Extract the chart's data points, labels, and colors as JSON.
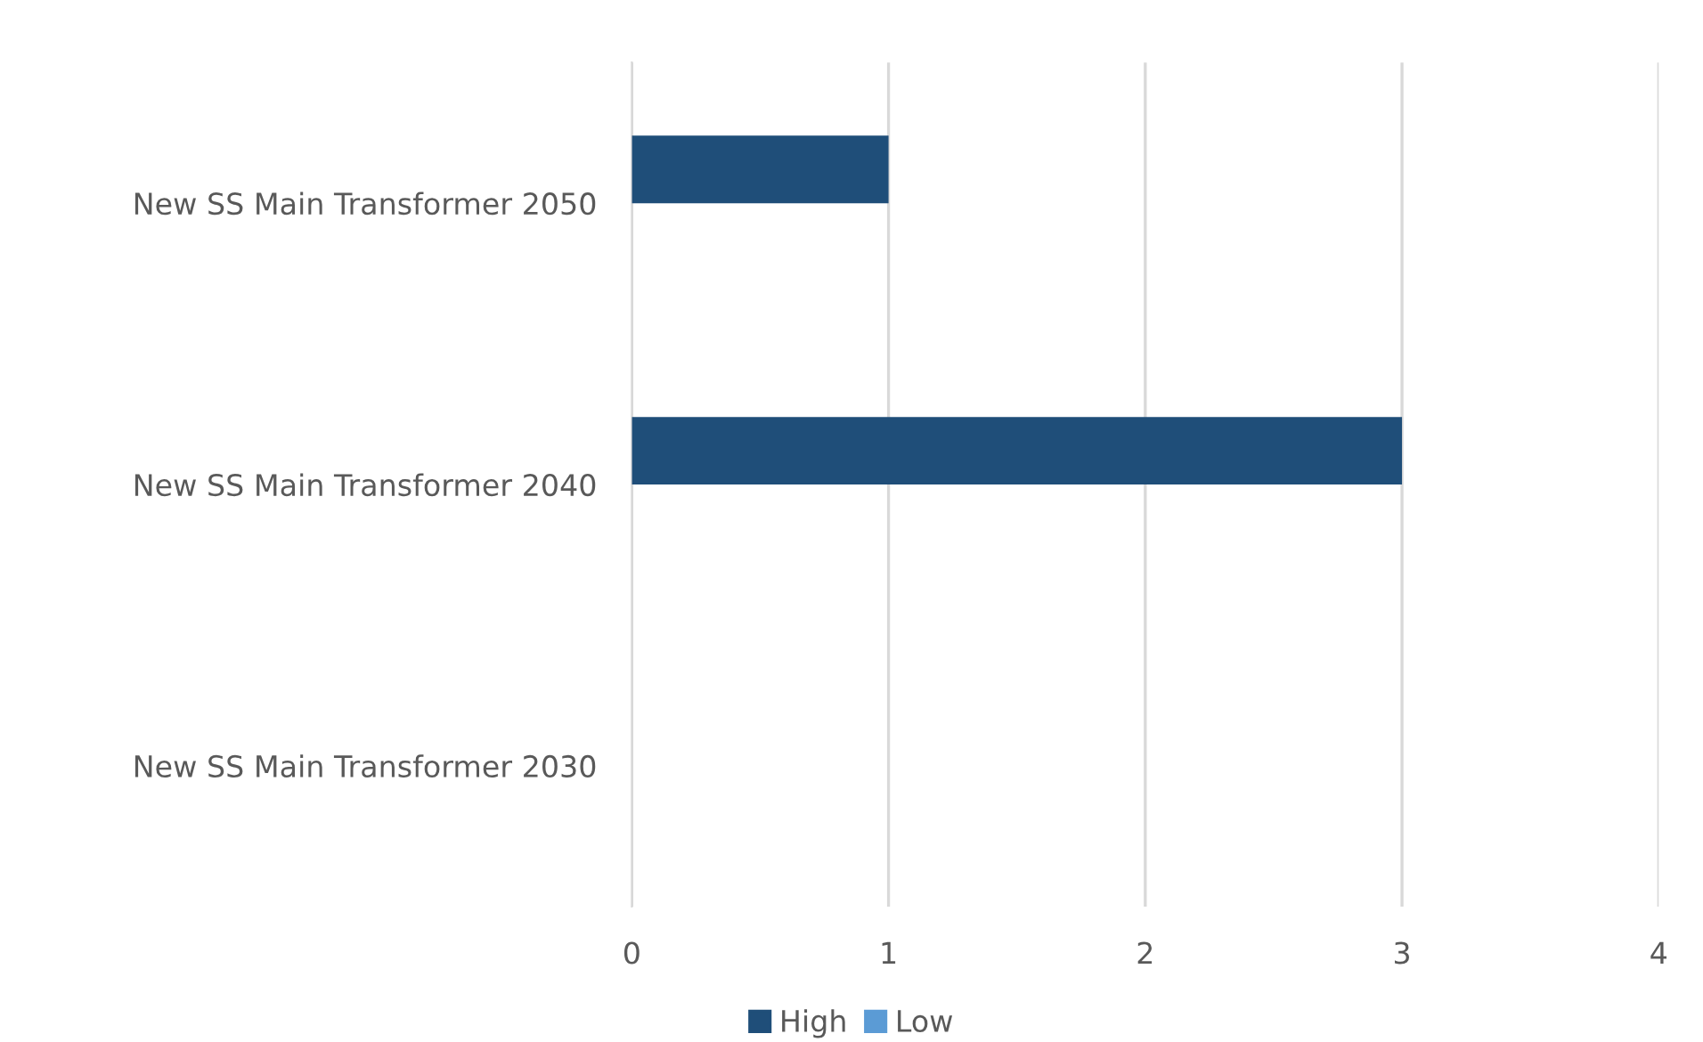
{
  "chart_data": {
    "type": "bar",
    "orientation": "horizontal",
    "categories": [
      "New SS Main Transformer 2050",
      "New SS Main Transformer 2040",
      "New SS Main Transformer 2030"
    ],
    "series": [
      {
        "name": "High",
        "color": "#1f4e79",
        "values": [
          1,
          3,
          0
        ]
      },
      {
        "name": "Low",
        "color": "#5b9bd5",
        "values": [
          0,
          0,
          0
        ]
      }
    ],
    "xlim": [
      0,
      4
    ],
    "xticks": [
      0,
      1,
      2,
      3,
      4
    ],
    "grid": "x",
    "legend": "bottom"
  }
}
